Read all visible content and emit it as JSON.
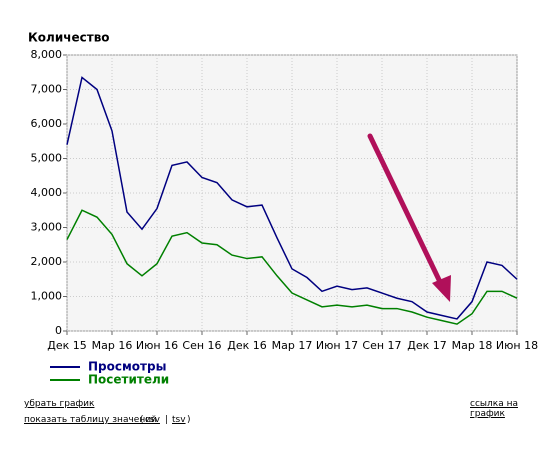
{
  "chart_data": {
    "type": "line",
    "ylabel": "Количество",
    "categories": [
      "Дек 15",
      null,
      null,
      "Мар 16",
      null,
      null,
      "Июн 16",
      null,
      null,
      "Сен 16",
      null,
      null,
      "Дек 16",
      null,
      null,
      "Мар 17",
      null,
      null,
      "Июн 17",
      null,
      null,
      "Сен 17",
      null,
      null,
      "Дек 17",
      null,
      null,
      "Мар 18",
      null,
      null,
      "Июн 18"
    ],
    "series": [
      {
        "name": "Просмотры",
        "color": "#000080",
        "values": [
          5400,
          7350,
          7000,
          5800,
          3450,
          2950,
          3550,
          4800,
          4900,
          4450,
          4300,
          3800,
          3600,
          3650,
          2700,
          1800,
          1550,
          1150,
          1300,
          1200,
          1250,
          1100,
          950,
          850,
          550,
          450,
          350,
          850,
          2000,
          1900,
          1500
        ]
      },
      {
        "name": "Посетители",
        "color": "#008000",
        "values": [
          2650,
          3500,
          3300,
          2800,
          1950,
          1600,
          1950,
          2750,
          2850,
          2550,
          2500,
          2200,
          2100,
          2150,
          1600,
          1100,
          900,
          700,
          750,
          700,
          750,
          650,
          650,
          550,
          400,
          300,
          200,
          500,
          1150,
          1150,
          950
        ]
      }
    ],
    "ylim": [
      0,
      8000
    ],
    "yticks": [
      0,
      {
        "value": 1000,
        "label": "1,000"
      },
      {
        "value": 2000,
        "label": "2,000"
      },
      {
        "value": 3000,
        "label": "3,000"
      },
      {
        "value": 4000,
        "label": "4,000"
      },
      {
        "value": 5000,
        "label": "5,000"
      },
      {
        "value": 6000,
        "label": "6,000"
      },
      {
        "value": 7000,
        "label": "7,000"
      },
      {
        "value": 8000,
        "label": "8,000"
      }
    ],
    "grid": true
  },
  "links": {
    "remove": "убрать график",
    "permalink": "ссылка на график",
    "table": "показать таблицу значений",
    "csv": "csv",
    "tsv": "tsv"
  }
}
